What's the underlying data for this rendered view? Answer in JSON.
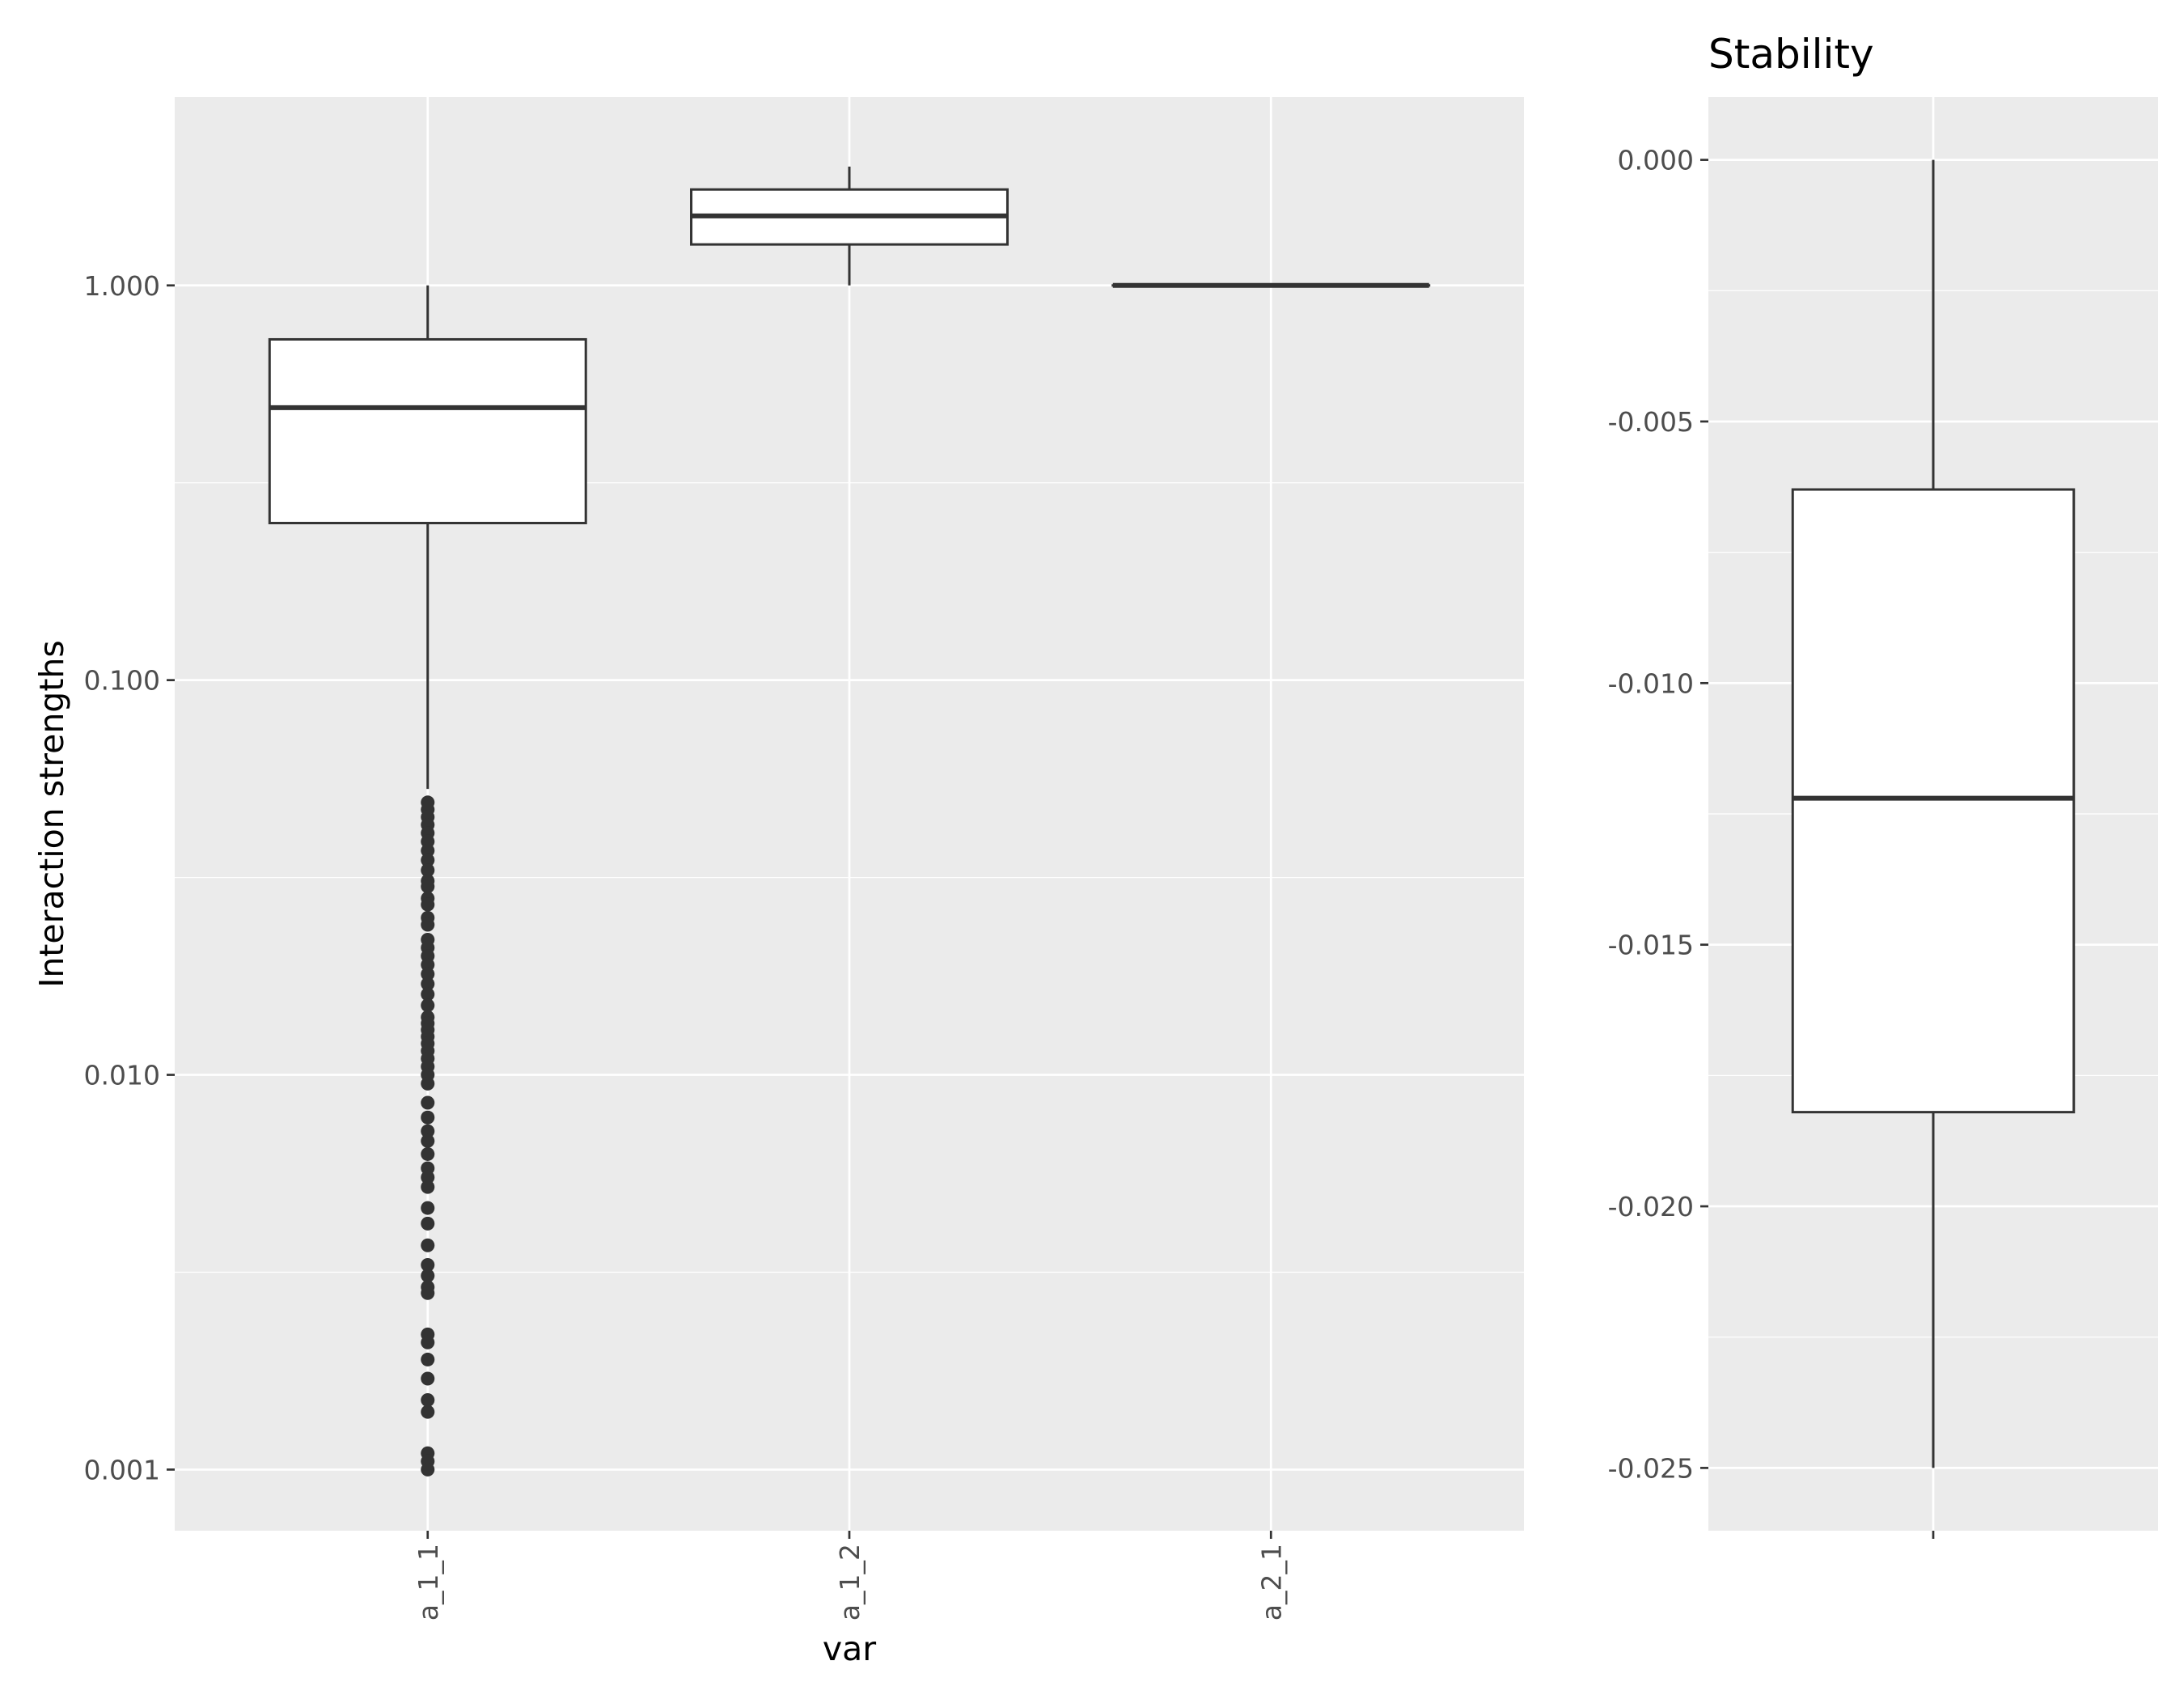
{
  "chart_data": [
    {
      "type": "boxplot",
      "title": "",
      "xlabel": "var",
      "ylabel": "Interaction strengths",
      "y_scale": "log10",
      "ylim": [
        0.0007,
        3
      ],
      "yticks": [
        "0.001",
        "0.010",
        "0.100",
        "1.000"
      ],
      "ytick_values": [
        0.001,
        0.01,
        0.1,
        1.0
      ],
      "categories": [
        "a_1_1",
        "a_1_2",
        "a_2_1"
      ],
      "boxes": [
        {
          "category": "a_1_1",
          "whisker_low": 0.053,
          "q1": 0.25,
          "median": 0.49,
          "q3": 0.73,
          "whisker_high": 1.0
        },
        {
          "category": "a_1_2",
          "whisker_low": 1.0,
          "q1": 1.27,
          "median": 1.5,
          "q3": 1.75,
          "whisker_high": 2.0
        },
        {
          "category": "a_2_1",
          "whisker_low": 1.0,
          "q1": 1.0,
          "median": 1.0,
          "q3": 1.0,
          "whisker_high": 1.0
        }
      ],
      "outliers": [
        {
          "category": "a_1_1",
          "values": [
            0.049,
            0.047,
            0.045,
            0.043,
            0.041,
            0.039,
            0.037,
            0.035,
            0.033,
            0.031,
            0.03,
            0.028,
            0.027,
            0.025,
            0.024,
            0.022,
            0.021,
            0.02,
            0.019,
            0.018,
            0.017,
            0.016,
            0.015,
            0.014,
            0.0135,
            0.013,
            0.0125,
            0.012,
            0.0115,
            0.011,
            0.0105,
            0.01,
            0.0095,
            0.0085,
            0.0078,
            0.0072,
            0.0068,
            0.0063,
            0.0058,
            0.0055,
            0.0052,
            0.0046,
            0.0042,
            0.0037,
            0.0033,
            0.0031,
            0.0029,
            0.0028,
            0.0022,
            0.0021,
            0.0019,
            0.0017,
            0.0015,
            0.0014,
            0.0011,
            0.00105,
            0.001
          ]
        }
      ],
      "grid": true
    },
    {
      "type": "boxplot",
      "title": "Stability",
      "xlabel": "",
      "ylabel": "",
      "ylim": [
        -0.0262,
        0.0012
      ],
      "yticks": [
        "0.000",
        "-0.005",
        "-0.010",
        "-0.015",
        "-0.020",
        "-0.025"
      ],
      "ytick_values": [
        0,
        -0.005,
        -0.01,
        -0.015,
        -0.02,
        -0.025
      ],
      "boxes": [
        {
          "category": "",
          "whisker_low": -0.025,
          "q1": -0.0182,
          "median": -0.0122,
          "q3": -0.0063,
          "whisker_high": 0.0
        }
      ],
      "grid": true
    }
  ]
}
